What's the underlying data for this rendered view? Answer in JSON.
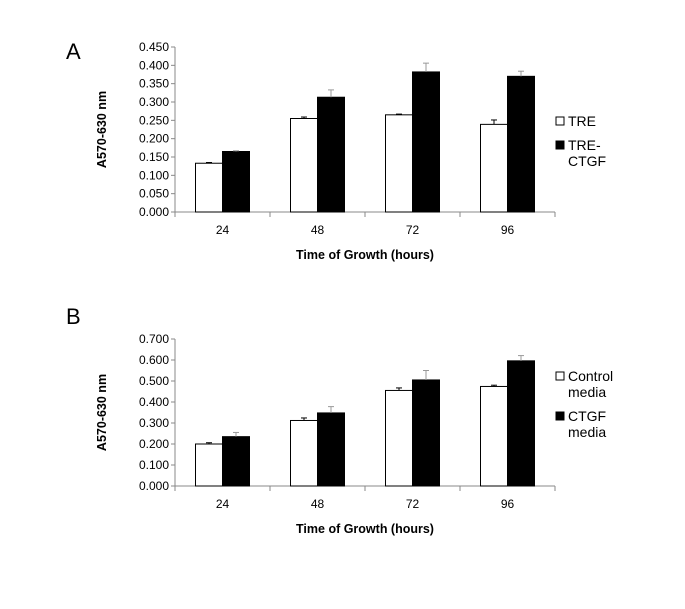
{
  "chart_data": [
    {
      "type": "bar",
      "panel": "A",
      "xlabel": "Time of Growth (hours)",
      "ylabel": "A570-630 nm",
      "categories": [
        "24",
        "48",
        "72",
        "96"
      ],
      "ylim": [
        0,
        0.45
      ],
      "yticks": [
        "0.000",
        "0.050",
        "0.100",
        "0.150",
        "0.200",
        "0.250",
        "0.300",
        "0.350",
        "0.400",
        "0.450"
      ],
      "legend_position": "right",
      "series": [
        {
          "name": "TRE",
          "legend_lines": [
            "TRE"
          ],
          "color": "#ffffff",
          "values": [
            0.133,
            0.255,
            0.265,
            0.239
          ],
          "errors": [
            0.002,
            0.004,
            0.002,
            0.012
          ]
        },
        {
          "name": "TRE-CTGF",
          "legend_lines": [
            "TRE-",
            "CTGF"
          ],
          "color": "#000000",
          "values": [
            0.165,
            0.313,
            0.382,
            0.37
          ],
          "errors": [
            0.002,
            0.02,
            0.024,
            0.014
          ]
        }
      ]
    },
    {
      "type": "bar",
      "panel": "B",
      "xlabel": "Time of Growth (hours)",
      "ylabel": "A570-630 nm",
      "categories": [
        "24",
        "48",
        "72",
        "96"
      ],
      "ylim": [
        0,
        0.7
      ],
      "yticks": [
        "0.000",
        "0.100",
        "0.200",
        "0.300",
        "0.400",
        "0.500",
        "0.600",
        "0.700"
      ],
      "legend_position": "right",
      "series": [
        {
          "name": "Control media",
          "legend_lines": [
            "Control",
            "media"
          ],
          "color": "#ffffff",
          "values": [
            0.2,
            0.312,
            0.455,
            0.474
          ],
          "errors": [
            0.006,
            0.012,
            0.012,
            0.006
          ]
        },
        {
          "name": "CTGF media",
          "legend_lines": [
            "CTGF",
            "media"
          ],
          "color": "#000000",
          "values": [
            0.235,
            0.348,
            0.505,
            0.596
          ],
          "errors": [
            0.02,
            0.03,
            0.045,
            0.025
          ]
        }
      ]
    }
  ]
}
